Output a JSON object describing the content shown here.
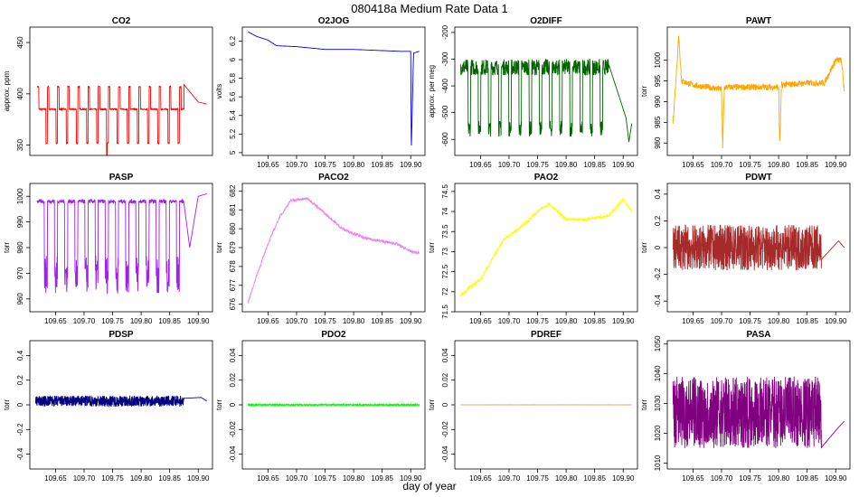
{
  "title": "080418a   Medium Rate Data 1",
  "xlabel": "day of year",
  "chart_data": [
    {
      "type": "line",
      "title": "CO2",
      "ylabel": "approx. ppm",
      "color": "#ff0000",
      "ylim": [
        340,
        465
      ],
      "yticks": [
        350,
        400,
        450
      ],
      "xlim": [
        109.605,
        109.925
      ],
      "xticks": [],
      "signal": {
        "kind": "square",
        "high": 407,
        "mid": 385,
        "low": 352,
        "period": 0.0178,
        "start": 109.618,
        "end": 109.875,
        "spikeAt": 109.74,
        "spikeVal": 334,
        "tail": [
          [
            109.875,
            409
          ],
          [
            109.9,
            392
          ],
          [
            109.915,
            390
          ]
        ]
      }
    },
    {
      "type": "line",
      "title": "O2JOG",
      "ylabel": "volts",
      "color": "#0000ff",
      "ylim": [
        4.97,
        6.35
      ],
      "yticks": [
        5.0,
        5.2,
        5.4,
        5.6,
        5.8,
        6.0,
        6.2
      ],
      "xlim": [
        109.605,
        109.925
      ],
      "xticks": [
        109.65,
        109.7,
        109.75,
        109.8,
        109.85,
        109.9
      ],
      "signal": {
        "kind": "points",
        "pts": [
          [
            109.615,
            6.3
          ],
          [
            109.63,
            6.25
          ],
          [
            109.65,
            6.21
          ],
          [
            109.665,
            6.15
          ],
          [
            109.7,
            6.14
          ],
          [
            109.75,
            6.11
          ],
          [
            109.8,
            6.11
          ],
          [
            109.88,
            6.09
          ],
          [
            109.9,
            6.09
          ],
          [
            109.901,
            5.0
          ],
          [
            109.905,
            6.07
          ],
          [
            109.915,
            6.09
          ]
        ]
      }
    },
    {
      "type": "line",
      "title": "O2DIFF",
      "ylabel": "approx. per meg",
      "color": "#006400",
      "ylim": [
        -660,
        -180
      ],
      "yticks": [
        -200,
        -300,
        -400,
        -500,
        -600
      ],
      "xlim": [
        109.605,
        109.925
      ],
      "xticks": [
        109.65,
        109.7,
        109.75,
        109.8,
        109.85,
        109.9
      ],
      "signal": {
        "kind": "noisy-square",
        "high": -330,
        "low": -560,
        "period": 0.0178,
        "start": 109.615,
        "end": 109.875,
        "noise": 60,
        "tail": [
          [
            109.905,
            -520
          ],
          [
            109.91,
            -610
          ],
          [
            109.915,
            -540
          ]
        ]
      }
    },
    {
      "type": "line",
      "title": "PAWT",
      "ylabel": "torr",
      "color": "#ffa500",
      "ylim": [
        977,
        1008
      ],
      "yticks": [
        980,
        985,
        990,
        995,
        1000
      ],
      "xlim": [
        109.605,
        109.925
      ],
      "xticks": [
        109.65,
        109.7,
        109.75,
        109.8,
        109.85,
        109.9
      ],
      "signal": {
        "kind": "points",
        "pts": [
          [
            109.615,
            985
          ],
          [
            109.62,
            995
          ],
          [
            109.625,
            1006
          ],
          [
            109.63,
            995
          ],
          [
            109.65,
            994
          ],
          [
            109.7,
            993
          ],
          [
            109.702,
            979
          ],
          [
            109.705,
            993.5
          ],
          [
            109.75,
            993.5
          ],
          [
            109.8,
            993.5
          ],
          [
            109.802,
            979
          ],
          [
            109.805,
            994
          ],
          [
            109.85,
            994.5
          ],
          [
            109.88,
            994.5
          ],
          [
            109.9,
            1000
          ],
          [
            109.91,
            1000
          ],
          [
            109.915,
            993
          ]
        ],
        "noise": 1.5
      }
    },
    {
      "type": "line",
      "title": "PASP",
      "ylabel": "torr",
      "color": "#a020f0",
      "ylim": [
        955,
        1005
      ],
      "yticks": [
        960,
        970,
        980,
        990,
        1000
      ],
      "xlim": [
        109.605,
        109.925
      ],
      "xticks": [
        109.65,
        109.7,
        109.75,
        109.8,
        109.85,
        109.9
      ],
      "signal": {
        "kind": "dip",
        "base": 998,
        "low": 962,
        "period": 0.0178,
        "start": 109.618,
        "end": 109.875,
        "tail": [
          [
            109.885,
            980
          ],
          [
            109.9,
            1000
          ],
          [
            109.915,
            1001
          ]
        ]
      }
    },
    {
      "type": "line",
      "title": "PACO2",
      "ylabel": "torr",
      "color": "#ee82ee",
      "ylim": [
        675.6,
        682.4
      ],
      "yticks": [
        676,
        677,
        678,
        679,
        680,
        681,
        682
      ],
      "xlim": [
        109.605,
        109.925
      ],
      "xticks": [
        109.65,
        109.7,
        109.75,
        109.8,
        109.85,
        109.9
      ],
      "signal": {
        "kind": "points",
        "pts": [
          [
            109.615,
            676.1
          ],
          [
            109.63,
            677.5
          ],
          [
            109.65,
            679.2
          ],
          [
            109.67,
            680.6
          ],
          [
            109.69,
            681.5
          ],
          [
            109.72,
            681.6
          ],
          [
            109.75,
            680.8
          ],
          [
            109.78,
            680.0
          ],
          [
            109.82,
            679.5
          ],
          [
            109.875,
            679.2
          ],
          [
            109.9,
            678.8
          ],
          [
            109.915,
            678.7
          ]
        ],
        "noise": 0.15
      }
    },
    {
      "type": "line",
      "title": "PAO2",
      "ylabel": "torr",
      "color": "#ffff00",
      "ylim": [
        71.5,
        74.7
      ],
      "yticks": [
        71.5,
        72.0,
        72.5,
        73.0,
        73.5,
        74.0,
        74.5
      ],
      "xlim": [
        109.605,
        109.925
      ],
      "xticks": [
        109.65,
        109.7,
        109.75,
        109.8,
        109.85,
        109.9
      ],
      "signal": {
        "kind": "points",
        "pts": [
          [
            109.615,
            71.9
          ],
          [
            109.63,
            72.1
          ],
          [
            109.65,
            72.3
          ],
          [
            109.67,
            72.8
          ],
          [
            109.69,
            73.3
          ],
          [
            109.72,
            73.6
          ],
          [
            109.75,
            74.0
          ],
          [
            109.77,
            74.2
          ],
          [
            109.8,
            73.8
          ],
          [
            109.83,
            73.8
          ],
          [
            109.875,
            73.9
          ],
          [
            109.9,
            74.3
          ],
          [
            109.915,
            74.0
          ]
        ],
        "noise": 0.08
      }
    },
    {
      "type": "line",
      "title": "PDWT",
      "ylabel": "torr",
      "color": "#a52a2a",
      "ylim": [
        -0.48,
        0.48
      ],
      "yticks": [
        -0.4,
        -0.2,
        0.0,
        0.2,
        0.4
      ],
      "xlim": [
        109.605,
        109.925
      ],
      "xticks": [
        109.65,
        109.7,
        109.75,
        109.8,
        109.85,
        109.9
      ],
      "signal": {
        "kind": "noise",
        "center": 0,
        "amp": 0.17,
        "start": 109.615,
        "end": 109.875,
        "tail": [
          [
            109.905,
            0.05
          ],
          [
            109.915,
            0.0
          ]
        ]
      }
    },
    {
      "type": "line",
      "title": "PDSP",
      "ylabel": "torr",
      "color": "#000080",
      "ylim": [
        -0.52,
        0.52
      ],
      "yticks": [
        -0.4,
        -0.2,
        0.0,
        0.2,
        0.4
      ],
      "xlim": [
        109.605,
        109.925
      ],
      "xticks": [
        109.65,
        109.7,
        109.75,
        109.8,
        109.85,
        109.9
      ],
      "signal": {
        "kind": "noise",
        "center": 0.03,
        "amp": 0.045,
        "start": 109.615,
        "end": 109.875,
        "tail": [
          [
            109.905,
            0.06
          ],
          [
            109.915,
            0.03
          ]
        ]
      }
    },
    {
      "type": "line",
      "title": "PDO2",
      "ylabel": "torr",
      "color": "#00ff00",
      "ylim": [
        -0.052,
        0.052
      ],
      "yticks": [
        -0.04,
        -0.02,
        0.0,
        0.02,
        0.04
      ],
      "xlim": [
        109.605,
        109.925
      ],
      "xticks": [
        109.65,
        109.7,
        109.75,
        109.8,
        109.85,
        109.9
      ],
      "signal": {
        "kind": "noise",
        "center": 0.0,
        "amp": 0.0008,
        "start": 109.615,
        "end": 109.915
      }
    },
    {
      "type": "line",
      "title": "PDREF",
      "ylabel": "torr",
      "color": "#f4a460",
      "ylim": [
        -0.052,
        0.052
      ],
      "yticks": [
        -0.04,
        -0.02,
        0.0,
        0.02,
        0.04
      ],
      "xlim": [
        109.605,
        109.925
      ],
      "xticks": [
        109.65,
        109.7,
        109.75,
        109.8,
        109.85,
        109.9
      ],
      "signal": {
        "kind": "noise",
        "center": 0.0,
        "amp": 0.0001,
        "start": 109.615,
        "end": 109.915
      }
    },
    {
      "type": "line",
      "title": "PASA",
      "ylabel": "torr",
      "color": "#800080",
      "ylim": [
        1008,
        1051
      ],
      "yticks": [
        1010,
        1020,
        1030,
        1040,
        1050
      ],
      "xlim": [
        109.605,
        109.925
      ],
      "xticks": [
        109.65,
        109.7,
        109.75,
        109.8,
        109.85,
        109.9
      ],
      "signal": {
        "kind": "noise",
        "center": 1027,
        "amp": 12,
        "start": 109.615,
        "end": 109.875,
        "tail": [
          [
            109.905,
            1022
          ],
          [
            109.915,
            1024
          ]
        ]
      }
    }
  ]
}
